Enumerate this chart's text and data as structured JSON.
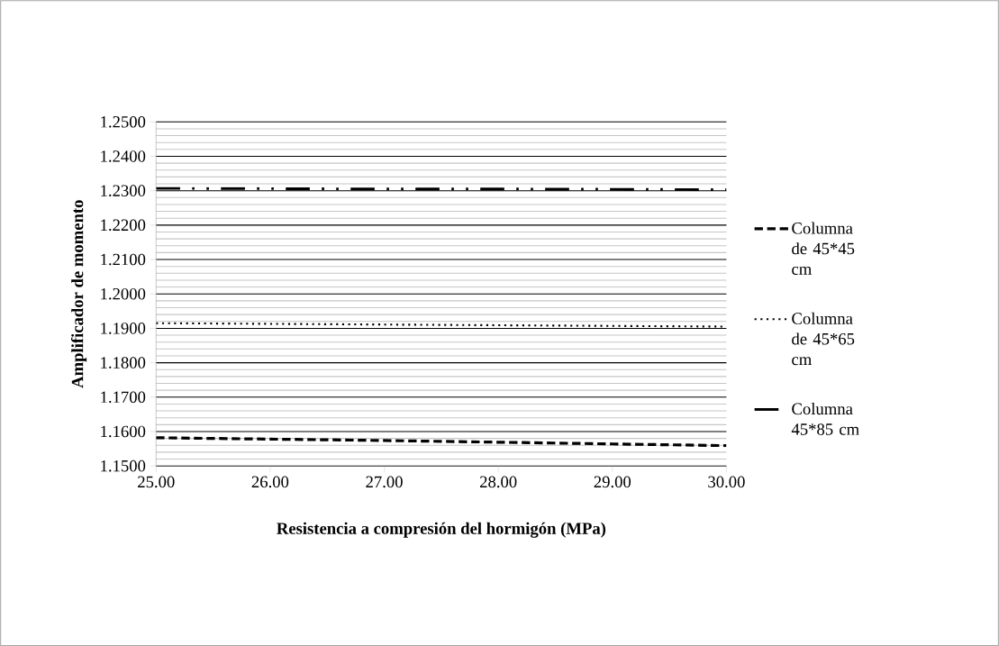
{
  "chart_data": {
    "type": "line",
    "xlabel": "Resistencia a compresión del hormigón (MPa)",
    "ylabel": "Amplificador de momento",
    "x": [
      25,
      26,
      27,
      28,
      29,
      30
    ],
    "series": [
      {
        "name": "Columna de 45*45 cm",
        "color": "#000000",
        "line_style": "dashed",
        "values": [
          1.1582,
          1.1578,
          1.1574,
          1.1569,
          1.1564,
          1.1559
        ]
      },
      {
        "name": "Columna de 45*65 cm",
        "color": "#000000",
        "line_style": "dotted",
        "values": [
          1.1915,
          1.1913,
          1.1911,
          1.1909,
          1.1907,
          1.1905
        ]
      },
      {
        "name": "Columna 45*85 cm",
        "color": "#000000",
        "line_style": "dashdotted",
        "values": [
          1.2307,
          1.2306,
          1.2305,
          1.2305,
          1.2304,
          1.2303
        ]
      }
    ],
    "xlim": [
      25,
      30
    ],
    "xticks": [
      {
        "value": 25,
        "label": "25.00"
      },
      {
        "value": 26,
        "label": "26.00"
      },
      {
        "value": 27,
        "label": "27.00"
      },
      {
        "value": 28,
        "label": "28.00"
      },
      {
        "value": 29,
        "label": "29.00"
      },
      {
        "value": 30,
        "label": "30.00"
      }
    ],
    "ylim": [
      1.15,
      1.25
    ],
    "yticks": [
      {
        "value": 1.15,
        "label": "1.1500"
      },
      {
        "value": 1.16,
        "label": "1.1600"
      },
      {
        "value": 1.17,
        "label": "1.1700"
      },
      {
        "value": 1.18,
        "label": "1.1800"
      },
      {
        "value": 1.19,
        "label": "1.1900"
      },
      {
        "value": 1.2,
        "label": "1.2000"
      },
      {
        "value": 1.21,
        "label": "1.2100"
      },
      {
        "value": 1.22,
        "label": "1.2200"
      },
      {
        "value": 1.23,
        "label": "1.2300"
      },
      {
        "value": 1.24,
        "label": "1.2400"
      },
      {
        "value": 1.25,
        "label": "1.2500"
      }
    ],
    "grid": "y",
    "legend": "right",
    "marker": "none"
  }
}
